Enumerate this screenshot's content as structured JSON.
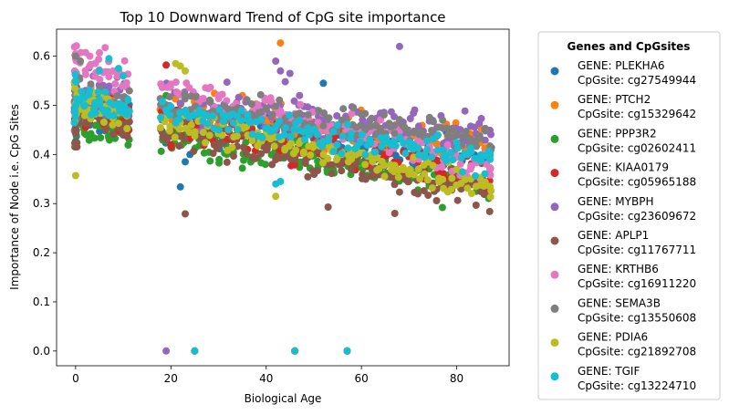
{
  "chart_data": {
    "type": "scatter",
    "title": "Top 10 Downward Trend of CpG site importance",
    "xlabel": "Biological Age",
    "ylabel": "Importance of Node i.e. CpG Sites",
    "xlim": [
      -4,
      91
    ],
    "ylim": [
      -0.03,
      0.655
    ],
    "xticks": [
      0,
      20,
      40,
      60,
      80
    ],
    "yticks": [
      0.0,
      0.1,
      0.2,
      0.3,
      0.4,
      0.5,
      0.6
    ],
    "grid": false,
    "legend": {
      "title": "Genes and CpGsites",
      "placement": "outside-right"
    },
    "series": [
      {
        "name": "GENE: PLEKHA6\nCpGsite: cg27549944",
        "gene_label": "GENE: PLEKHA6",
        "cpg_label": "CpGsite: cg27549944",
        "color": "#1f77b4",
        "start": 0.48,
        "end": 0.4,
        "spread": 0.035,
        "outliers": [
          [
            22,
            0.334
          ],
          [
            23,
            0.385
          ],
          [
            24,
            0.4
          ],
          [
            25,
            0.0
          ],
          [
            46,
            0.0
          ],
          [
            57,
            0.0
          ],
          [
            52,
            0.545
          ],
          [
            19,
            0.5
          ]
        ]
      },
      {
        "name": "GENE: PTCH2\nCpGsite: cg15329642",
        "gene_label": "GENE: PTCH2",
        "cpg_label": "CpGsite: cg15329642",
        "color": "#ff7f0e",
        "start": 0.5,
        "end": 0.42,
        "spread": 0.035,
        "outliers": [
          [
            43,
            0.627
          ],
          [
            25,
            0.0
          ],
          [
            46,
            0.0
          ],
          [
            57,
            0.0
          ],
          [
            35,
            0.52
          ]
        ]
      },
      {
        "name": "GENE: PPP3R2\nCpGsite: cg02602411",
        "gene_label": "GENE: PPP3R2",
        "cpg_label": "CpGsite: cg02602411",
        "color": "#2ca02c",
        "start": 0.46,
        "end": 0.33,
        "spread": 0.03,
        "outliers": [
          [
            77,
            0.292
          ],
          [
            35,
            0.372
          ],
          [
            25,
            0.0
          ],
          [
            46,
            0.0
          ],
          [
            57,
            0.0
          ],
          [
            19,
            0.52
          ]
        ]
      },
      {
        "name": "GENE: KIAA0179\nCpGsite: cg05965188",
        "gene_label": "GENE: KIAA0179",
        "cpg_label": "CpGsite: cg05965188",
        "color": "#d62728",
        "start": 0.5,
        "end": 0.36,
        "spread": 0.045,
        "outliers": [
          [
            19,
            0.582
          ],
          [
            20,
            0.42
          ],
          [
            25,
            0.0
          ],
          [
            46,
            0.0
          ],
          [
            57,
            0.0
          ],
          [
            87,
            0.33
          ]
        ]
      },
      {
        "name": "GENE: MYBPH\nCpGsite: cg23609672",
        "gene_label": "GENE: MYBPH",
        "cpg_label": "CpGsite: cg23609672",
        "color": "#9467bd",
        "start": 0.52,
        "end": 0.44,
        "spread": 0.04,
        "outliers": [
          [
            19,
            0.0
          ],
          [
            68,
            0.62
          ],
          [
            42,
            0.59
          ],
          [
            43,
            0.57
          ],
          [
            45,
            0.565
          ],
          [
            44,
            0.548
          ],
          [
            47,
            0.52
          ],
          [
            25,
            0.0
          ],
          [
            46,
            0.0
          ],
          [
            57,
            0.0
          ],
          [
            30,
            0.52
          ]
        ]
      },
      {
        "name": "GENE: APLP1\nCpGsite: cg11767711",
        "gene_label": "GENE: APLP1",
        "cpg_label": "CpGsite: cg11767711",
        "color": "#8c564b",
        "start": 0.48,
        "end": 0.32,
        "spread": 0.035,
        "outliers": [
          [
            23,
            0.279
          ],
          [
            67,
            0.28
          ],
          [
            10,
            0.443
          ],
          [
            25,
            0.0
          ],
          [
            46,
            0.0
          ],
          [
            57,
            0.0
          ],
          [
            53,
            0.293
          ]
        ]
      },
      {
        "name": "GENE: KRTHB6\nCpGsite: cg16911220",
        "gene_label": "GENE: KRTHB6",
        "cpg_label": "CpGsite: cg16911220",
        "color": "#e377c2",
        "start": 0.58,
        "end": 0.38,
        "spread": 0.035,
        "outliers": [
          [
            0,
            0.605
          ],
          [
            5,
            0.607
          ],
          [
            3,
            0.6
          ],
          [
            25,
            0.0
          ],
          [
            46,
            0.0
          ],
          [
            57,
            0.0
          ],
          [
            87,
            0.373
          ]
        ]
      },
      {
        "name": "GENE: SEMA3B\nCpGsite: cg13550608",
        "gene_label": "GENE: SEMA3B",
        "cpg_label": "CpGsite: cg13550608",
        "color": "#7f7f7f",
        "start": 0.52,
        "end": 0.43,
        "spread": 0.035,
        "outliers": [
          [
            0,
            0.6
          ],
          [
            1,
            0.59
          ],
          [
            25,
            0.0
          ],
          [
            46,
            0.0
          ],
          [
            57,
            0.0
          ],
          [
            86,
            0.45
          ]
        ]
      },
      {
        "name": "GENE: PDIA6\nCpGsite: cg21892708",
        "gene_label": "GENE: PDIA6",
        "cpg_label": "CpGsite: cg21892708",
        "color": "#bcbd22",
        "start": 0.5,
        "end": 0.34,
        "spread": 0.03,
        "outliers": [
          [
            0,
            0.357
          ],
          [
            21,
            0.585
          ],
          [
            22,
            0.58
          ],
          [
            23,
            0.57
          ],
          [
            42,
            0.315
          ],
          [
            25,
            0.0
          ],
          [
            46,
            0.0
          ],
          [
            57,
            0.0
          ],
          [
            87,
            0.335
          ]
        ]
      },
      {
        "name": "GENE: TGIF\nCpGsite: cg13224710",
        "gene_label": "GENE: TGIF",
        "cpg_label": "CpGsite: cg13224710",
        "color": "#17becf",
        "start": 0.51,
        "end": 0.39,
        "spread": 0.03,
        "outliers": [
          [
            7,
            0.595
          ],
          [
            5,
            0.57
          ],
          [
            9,
            0.575
          ],
          [
            10,
            0.56
          ],
          [
            42,
            0.34
          ],
          [
            43,
            0.345
          ],
          [
            25,
            0.0
          ],
          [
            46,
            0.0
          ],
          [
            57,
            0.0
          ],
          [
            87,
            0.39
          ]
        ]
      }
    ]
  }
}
